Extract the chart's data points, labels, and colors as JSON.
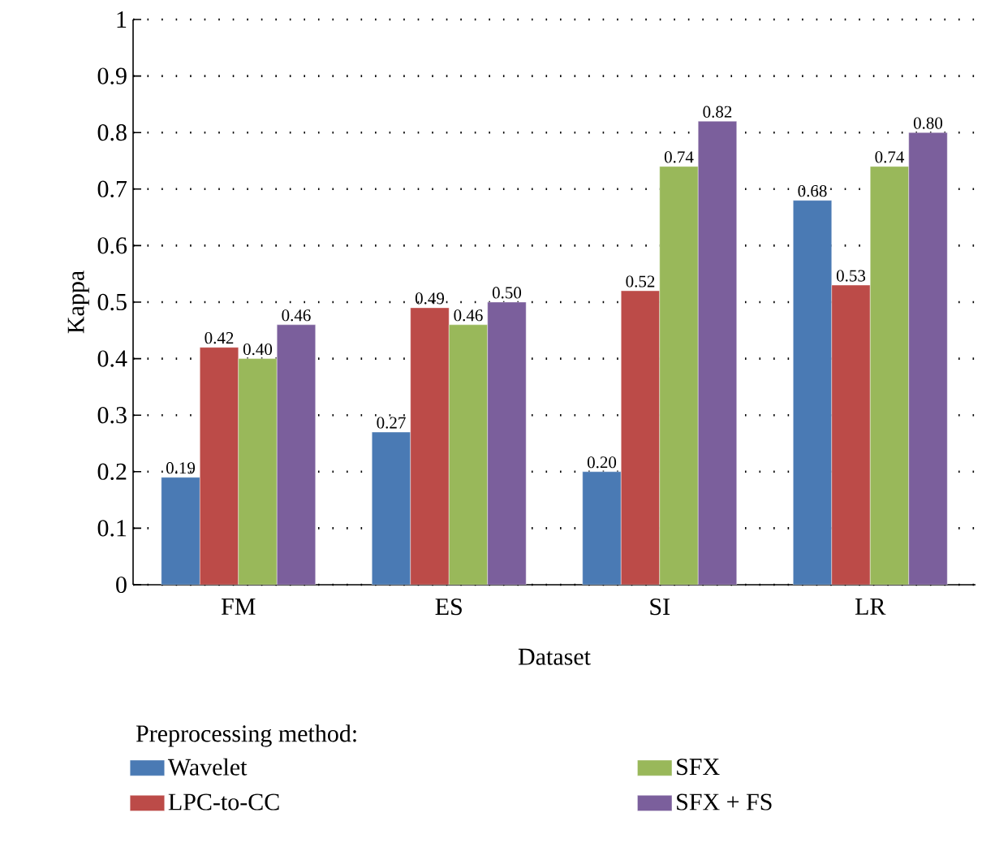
{
  "chart_data": {
    "type": "bar",
    "xlabel": "Dataset",
    "ylabel": "Kappa",
    "legend_title": "Preprocessing method:",
    "categories": [
      "FM",
      "ES",
      "SI",
      "LR"
    ],
    "series": [
      {
        "name": "Wavelet",
        "color": "#4a7ab4",
        "values": [
          0.19,
          0.27,
          0.2,
          0.68
        ],
        "value_labels": [
          "0.19",
          "0.27",
          "0.20",
          "0.68"
        ]
      },
      {
        "name": "LPC-to-CC",
        "color": "#bc4b48",
        "values": [
          0.42,
          0.49,
          0.52,
          0.53
        ],
        "value_labels": [
          "0.42",
          "0.49",
          "0.52",
          "0.53"
        ]
      },
      {
        "name": "SFX",
        "color": "#99b85a",
        "values": [
          0.4,
          0.46,
          0.74,
          0.74
        ],
        "value_labels": [
          "0.40",
          "0.46",
          "0.74",
          "0.74"
        ]
      },
      {
        "name": "SFX + FS",
        "color": "#7b5f9c",
        "values": [
          0.46,
          0.5,
          0.82,
          0.8
        ],
        "value_labels": [
          "0.46",
          "0.50",
          "0.82",
          "0.80"
        ]
      }
    ],
    "ylim": [
      0,
      1
    ],
    "yticks": [
      0,
      0.1,
      0.2,
      0.3,
      0.4,
      0.5,
      0.6,
      0.7,
      0.8,
      0.9,
      1
    ],
    "grid": "y",
    "legend": "bottom"
  }
}
